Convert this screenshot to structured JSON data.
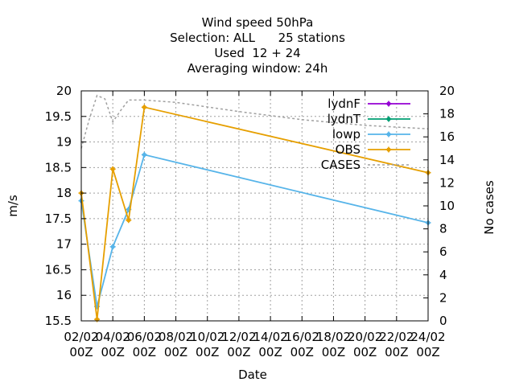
{
  "chart_data": {
    "type": "line",
    "title_lines": [
      "Wind speed 50hPa",
      "Selection: ALL      25 stations",
      "Used  12 + 24",
      "Averaging window: 24h"
    ],
    "xlabel": "Date",
    "ylabel": "m/s",
    "y2label": "No cases",
    "ylim": [
      15.5,
      20
    ],
    "y2lim": [
      0,
      20
    ],
    "yticks": [
      15.5,
      16,
      16.5,
      17,
      17.5,
      18,
      18.5,
      19,
      19.5,
      20
    ],
    "ytick_labels": [
      "15.5",
      "16",
      "16.5",
      "17",
      "17.5",
      "18",
      "18.5",
      "19",
      "19.5",
      "20"
    ],
    "y2ticks": [
      0,
      2,
      4,
      6,
      8,
      10,
      12,
      14,
      16,
      18,
      20
    ],
    "y2tick_labels": [
      "0",
      "2",
      "4",
      "6",
      "8",
      "10",
      "12",
      "14",
      "16",
      "18",
      "20"
    ],
    "xlim": [
      0,
      22
    ],
    "x_unit": "days from 02/02 00Z",
    "xticks": [
      0,
      2,
      4,
      6,
      8,
      10,
      12,
      14,
      16,
      18,
      20,
      22
    ],
    "xtick_labels": [
      [
        "02/02",
        "00Z"
      ],
      [
        "04/02",
        "00Z"
      ],
      [
        "06/02",
        "00Z"
      ],
      [
        "08/02",
        "00Z"
      ],
      [
        "10/02",
        "00Z"
      ],
      [
        "12/02",
        "00Z"
      ],
      [
        "14/02",
        "00Z"
      ],
      [
        "16/02",
        "00Z"
      ],
      [
        "18/02",
        "00Z"
      ],
      [
        "20/02",
        "00Z"
      ],
      [
        "22/02",
        "00Z"
      ],
      [
        "24/02",
        "00Z"
      ]
    ],
    "grid": true,
    "legend_position": "top-right",
    "series": [
      {
        "name": "lydnF",
        "color": "#9400d3",
        "marker": true,
        "axis": "y1",
        "points": []
      },
      {
        "name": "lydnT",
        "color": "#009e73",
        "marker": true,
        "axis": "y1",
        "points": []
      },
      {
        "name": "lowp",
        "color": "#56b4e9",
        "marker": true,
        "axis": "y1",
        "points": [
          [
            0,
            17.85
          ],
          [
            1,
            15.78
          ],
          [
            2,
            16.95
          ],
          [
            3,
            17.68
          ],
          [
            4,
            18.75
          ],
          [
            22,
            17.42
          ]
        ]
      },
      {
        "name": "OBS",
        "color": "#e69f00",
        "marker": true,
        "axis": "y1",
        "points": [
          [
            0,
            18.0
          ],
          [
            1,
            15.53
          ],
          [
            2,
            18.47
          ],
          [
            3,
            17.47
          ],
          [
            4,
            19.68
          ],
          [
            22,
            18.4
          ]
        ]
      },
      {
        "name": "CASES",
        "color": "#a0a0a0",
        "marker": false,
        "dashed": true,
        "axis": "y2",
        "points": [
          [
            0,
            15
          ],
          [
            0.5,
            17.5
          ],
          [
            1,
            19.6
          ],
          [
            1.5,
            19.3
          ],
          [
            2,
            17.3
          ],
          [
            2.5,
            18.3
          ],
          [
            3,
            19.2
          ],
          [
            4,
            19.2
          ],
          [
            6,
            19
          ],
          [
            10,
            18.2
          ],
          [
            14,
            17.5
          ],
          [
            18,
            17
          ],
          [
            22,
            16.7
          ]
        ]
      }
    ]
  }
}
